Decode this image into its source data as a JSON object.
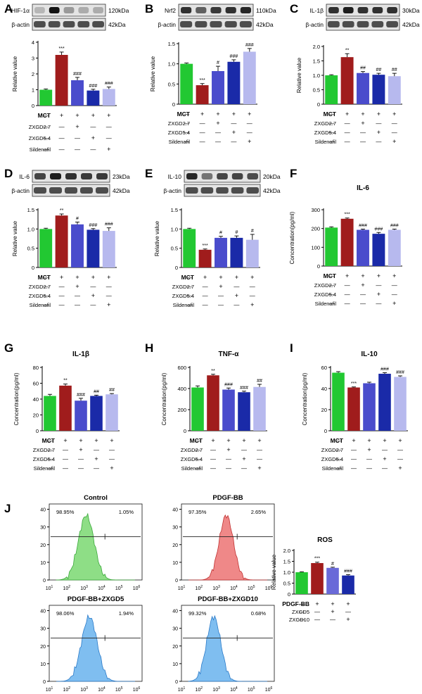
{
  "colors": {
    "green": "#22c832",
    "red": "#a01c1c",
    "blue2": "#4a4ccc",
    "blue3": "#1a2aa8",
    "lav": "#b7b9ee",
    "purple": "#6a6ad8",
    "flow_green": "#8ede86",
    "flow_red": "#ef8888",
    "flow_blue": "#7fbef0"
  },
  "treat_labels": {
    "mct": "MCT",
    "z27": "ZXGD2.7",
    "z54": "ZXGD5.4",
    "sil": "Sildenafil",
    "pdgf": "PDGF-BB",
    "z5": "ZXGD5",
    "z10": "ZXGD10"
  },
  "signs": {
    "plus": "+",
    "minus": "—"
  },
  "common": {
    "beta": "β-actin",
    "beta_kda": "42kDa",
    "relative": "Relative value",
    "conc": "Concentration(pg/ml)"
  },
  "chart_data": [
    {
      "id": "A",
      "type": "bar",
      "blot": "HIF-1α",
      "kda": "120kDa",
      "ylabel": "Relative value",
      "ylim": [
        0,
        4
      ],
      "ticks": [
        "0",
        "1",
        "2",
        "3",
        "4"
      ],
      "values": [
        1.0,
        3.2,
        1.6,
        0.95,
        1.05
      ],
      "errors": [
        0.05,
        0.18,
        0.18,
        0.08,
        0.12
      ],
      "sig": [
        "",
        "***",
        "###",
        "###",
        "###"
      ],
      "signs": [
        [
          "—",
          "+",
          "+",
          "+",
          "+"
        ],
        [
          "—",
          "—",
          "+",
          "—",
          "—"
        ],
        [
          "—",
          "—",
          "—",
          "+",
          "—"
        ],
        [
          "—",
          "—",
          "—",
          "—",
          "+"
        ]
      ]
    },
    {
      "id": "B",
      "type": "bar",
      "blot": "Nrf2",
      "kda": "110kDa",
      "ylabel": "Relative value",
      "ylim": [
        0,
        1.5
      ],
      "ticks": [
        "0",
        "0.5",
        "1.0",
        "1.5"
      ],
      "values": [
        1.0,
        0.47,
        0.82,
        1.05,
        1.3
      ],
      "errors": [
        0.02,
        0.04,
        0.12,
        0.05,
        0.08
      ],
      "sig": [
        "",
        "***",
        "#",
        "###",
        "###"
      ],
      "signs": [
        [
          "—",
          "+",
          "+",
          "+",
          "+"
        ],
        [
          "—",
          "—",
          "+",
          "—",
          "—"
        ],
        [
          "—",
          "—",
          "—",
          "+",
          "—"
        ],
        [
          "—",
          "—",
          "—",
          "—",
          "+"
        ]
      ]
    },
    {
      "id": "C",
      "type": "bar",
      "blot": "IL-1β",
      "kda": "30kDa",
      "ylabel": "Relative value",
      "ylim": [
        0,
        2.0
      ],
      "ticks": [
        "0",
        "0.5",
        "1.0",
        "1.5",
        "2.0"
      ],
      "values": [
        1.0,
        1.63,
        1.08,
        1.02,
        0.97
      ],
      "errors": [
        0.02,
        0.12,
        0.05,
        0.05,
        0.1
      ],
      "sig": [
        "",
        "**",
        "##",
        "##",
        "##"
      ],
      "signs": [
        [
          "—",
          "+",
          "+",
          "+",
          "+"
        ],
        [
          "—",
          "—",
          "+",
          "—",
          "—"
        ],
        [
          "—",
          "—",
          "—",
          "+",
          "—"
        ],
        [
          "—",
          "—",
          "—",
          "—",
          "+"
        ]
      ]
    },
    {
      "id": "D",
      "type": "bar",
      "blot": "IL-6",
      "kda": "23kDa",
      "ylabel": "Relative value",
      "ylim": [
        0,
        1.5
      ],
      "ticks": [
        "0",
        "0.5",
        "1.0",
        "1.5"
      ],
      "values": [
        1.0,
        1.35,
        1.12,
        0.98,
        0.95
      ],
      "errors": [
        0.02,
        0.04,
        0.06,
        0.03,
        0.08
      ],
      "sig": [
        "",
        "**",
        "#",
        "###",
        "###"
      ],
      "signs": [
        [
          "—",
          "+",
          "+",
          "+",
          "+"
        ],
        [
          "—",
          "—",
          "+",
          "—",
          "—"
        ],
        [
          "—",
          "—",
          "—",
          "+",
          "—"
        ],
        [
          "—",
          "—",
          "—",
          "—",
          "+"
        ]
      ]
    },
    {
      "id": "E",
      "type": "bar",
      "blot": "IL-10",
      "kda": "20kDa",
      "ylabel": "Relative value",
      "ylim": [
        0,
        1.5
      ],
      "ticks": [
        "0",
        "0.5",
        "1.0",
        "1.5"
      ],
      "values": [
        1.0,
        0.46,
        0.77,
        0.77,
        0.72
      ],
      "errors": [
        0.02,
        0.02,
        0.04,
        0.05,
        0.14
      ],
      "sig": [
        "",
        "***",
        "#",
        "#",
        "#"
      ],
      "signs": [
        [
          "—",
          "+",
          "+",
          "+",
          "+"
        ],
        [
          "—",
          "—",
          "+",
          "—",
          "—"
        ],
        [
          "—",
          "—",
          "—",
          "+",
          "—"
        ],
        [
          "—",
          "—",
          "—",
          "—",
          "+"
        ]
      ]
    },
    {
      "id": "F",
      "type": "bar",
      "title": "IL-6",
      "ylabel": "Concentration(pg/ml)",
      "ylim": [
        0,
        300
      ],
      "ticks": [
        "0",
        "100",
        "200",
        "300"
      ],
      "values": [
        205,
        252,
        193,
        172,
        193
      ],
      "errors": [
        4,
        4,
        4,
        7,
        4
      ],
      "sig": [
        "",
        "***",
        "###",
        "###",
        "###"
      ],
      "signs": [
        [
          "—",
          "+",
          "+",
          "+",
          "+"
        ],
        [
          "—",
          "—",
          "+",
          "—",
          "—"
        ],
        [
          "—",
          "—",
          "—",
          "+",
          "—"
        ],
        [
          "—",
          "—",
          "—",
          "—",
          "+"
        ]
      ]
    },
    {
      "id": "G",
      "type": "bar",
      "title": "IL-1β",
      "ylabel": "Concentration(pg/ml)",
      "ylim": [
        0,
        80
      ],
      "ticks": [
        "0",
        "20",
        "40",
        "60",
        "80"
      ],
      "values": [
        44,
        57,
        38,
        44,
        46
      ],
      "errors": [
        2,
        2,
        3,
        1,
        1
      ],
      "sig": [
        "",
        "**",
        "###",
        "##",
        "##"
      ],
      "signs": [
        [
          "—",
          "+",
          "+",
          "+",
          "+"
        ],
        [
          "—",
          "—",
          "+",
          "—",
          "—"
        ],
        [
          "—",
          "—",
          "—",
          "+",
          "—"
        ],
        [
          "—",
          "—",
          "—",
          "—",
          "+"
        ]
      ]
    },
    {
      "id": "H",
      "type": "bar",
      "title": "TNF-α",
      "ylabel": "Concentration(pg/ml)",
      "ylim": [
        0,
        600
      ],
      "ticks": [
        "0",
        "200",
        "400",
        "600"
      ],
      "values": [
        410,
        525,
        390,
        365,
        415
      ],
      "errors": [
        15,
        10,
        15,
        10,
        25
      ],
      "sig": [
        "",
        "**",
        "###",
        "###",
        "##"
      ],
      "signs": [
        [
          "—",
          "+",
          "+",
          "+",
          "+"
        ],
        [
          "—",
          "—",
          "+",
          "—",
          "—"
        ],
        [
          "—",
          "—",
          "—",
          "+",
          "—"
        ],
        [
          "—",
          "—",
          "—",
          "—",
          "+"
        ]
      ]
    },
    {
      "id": "I",
      "type": "bar",
      "title": "IL-10",
      "ylabel": "Concentration(pg/ml)",
      "ylim": [
        0,
        60
      ],
      "ticks": [
        "0",
        "20",
        "40",
        "60"
      ],
      "values": [
        55,
        41,
        45,
        54,
        51
      ],
      "errors": [
        1,
        0.5,
        1,
        1,
        1
      ],
      "sig": [
        "",
        "***",
        "",
        "###",
        "###"
      ],
      "signs": [
        [
          "—",
          "+",
          "+",
          "+",
          "+"
        ],
        [
          "—",
          "—",
          "+",
          "—",
          "—"
        ],
        [
          "—",
          "—",
          "—",
          "+",
          "—"
        ],
        [
          "—",
          "—",
          "—",
          "—",
          "+"
        ]
      ]
    },
    {
      "id": "ROS",
      "type": "bar",
      "title": "ROS",
      "ylabel": "Relative value",
      "ylim": [
        0,
        2.0
      ],
      "ticks": [
        "0",
        "0.5",
        "1.0",
        "1.5",
        "2.0"
      ],
      "values": [
        1.0,
        1.42,
        1.2,
        0.85
      ],
      "errors": [
        0.02,
        0.04,
        0.03,
        0.04
      ],
      "sig": [
        "",
        "***",
        "#",
        "###"
      ],
      "signs": [
        [
          "—",
          "+",
          "+",
          "+"
        ],
        [
          "—",
          "—",
          "+",
          "—"
        ],
        [
          "—",
          "—",
          "—",
          "+"
        ]
      ]
    }
  ],
  "flow": [
    {
      "title": "Control",
      "left": "98.95%",
      "right": "1.05%"
    },
    {
      "title": "PDGF-BB",
      "left": "97.35%",
      "right": "2.65%"
    },
    {
      "title": "PDGF-BB+ZXGD5",
      "left": "98.06%",
      "right": "1.94%"
    },
    {
      "title": "PDGF-BB+ZXGD10",
      "left": "99.32%",
      "right": "0.68%"
    }
  ],
  "flow_axis": {
    "yticks": [
      "0",
      "10",
      "20",
      "30",
      "40"
    ],
    "xticks": [
      "10",
      "10",
      "10",
      "10",
      "10",
      "10"
    ],
    "xexp": [
      "1",
      "2",
      "3",
      "4",
      "5",
      "6"
    ]
  },
  "panels": [
    "A",
    "B",
    "C",
    "D",
    "E",
    "F",
    "G",
    "H",
    "I",
    "J"
  ]
}
